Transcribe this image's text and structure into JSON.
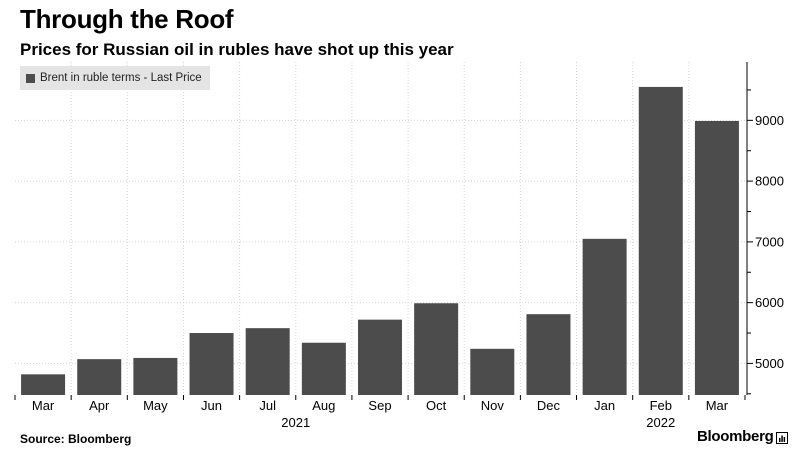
{
  "title": "Through the Roof",
  "subtitle": "Prices for Russian oil in rubles have shot up this year",
  "source": "Source: Bloomberg",
  "brand": "Bloomberg",
  "colors": {
    "bar": "#4c4c4c",
    "grid": "#d6d6d6",
    "legend_bg": "#e4e4e4"
  },
  "chart_data": {
    "type": "bar",
    "categories": [
      "Mar",
      "Apr",
      "May",
      "Jun",
      "Jul",
      "Aug",
      "Sep",
      "Oct",
      "Nov",
      "Dec",
      "Jan",
      "Feb",
      "Mar"
    ],
    "year_labels": [
      {
        "label": "2021",
        "from": 0,
        "to": 9
      },
      {
        "label": "2022",
        "from": 10,
        "to": 12
      }
    ],
    "series": [
      {
        "name": "Brent in ruble terms - Last Price",
        "values": [
          4820,
          5070,
          5090,
          5500,
          5580,
          5340,
          5720,
          5990,
          5240,
          5810,
          7050,
          9550,
          8990
        ]
      }
    ],
    "y_ticks": [
      5000,
      6000,
      7000,
      8000,
      9000
    ],
    "ylim": [
      4480,
      9960
    ],
    "y_axis_side": "right",
    "grid": true,
    "legend_position": "top-left"
  }
}
